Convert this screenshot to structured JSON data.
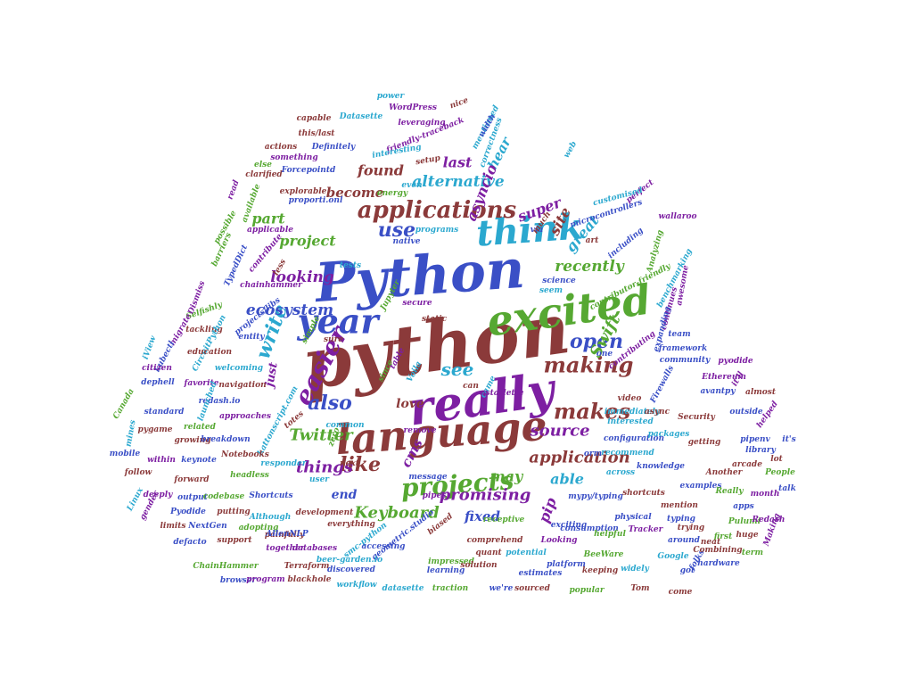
{
  "palette": [
    "#3a4fc6",
    "#8b3a3a",
    "#7d1fa2",
    "#56a832",
    "#2ba8cf"
  ],
  "words": [
    {
      "text": "python",
      "color": 1,
      "weight": 10
    },
    {
      "text": "Python",
      "color": 0,
      "weight": 9
    },
    {
      "text": "really",
      "color": 2,
      "weight": 8
    },
    {
      "text": "excited",
      "color": 3,
      "weight": 7
    },
    {
      "text": "language",
      "color": 1,
      "weight": 7
    },
    {
      "text": "think",
      "color": 4,
      "weight": 6
    },
    {
      "text": "year",
      "color": 0,
      "weight": 6
    },
    {
      "text": "applications",
      "color": 1,
      "weight": 5
    },
    {
      "text": "easier",
      "color": 2,
      "weight": 5
    },
    {
      "text": "projects",
      "color": 3,
      "weight": 5
    },
    {
      "text": "making",
      "color": 1,
      "weight": 5
    },
    {
      "text": "makes",
      "color": 1,
      "weight": 5
    },
    {
      "text": "also",
      "color": 0,
      "weight": 5
    },
    {
      "text": "like",
      "color": 1,
      "weight": 5
    },
    {
      "text": "use",
      "color": 0,
      "weight": 5
    },
    {
      "text": "open",
      "color": 0,
      "weight": 5
    },
    {
      "text": "see",
      "color": 4,
      "weight": 5
    },
    {
      "text": "write",
      "color": 4,
      "weight": 4
    },
    {
      "text": "Swift",
      "color": 3,
      "weight": 4
    },
    {
      "text": "application",
      "color": 1,
      "weight": 4
    },
    {
      "text": "source",
      "color": 2,
      "weight": 4
    },
    {
      "text": "promising",
      "color": 2,
      "weight": 4
    },
    {
      "text": "Keyboard",
      "color": 3,
      "weight": 4
    },
    {
      "text": "Twitter",
      "color": 3,
      "weight": 4
    },
    {
      "text": "things",
      "color": 2,
      "weight": 4
    },
    {
      "text": "ecosystem",
      "color": 0,
      "weight": 4
    },
    {
      "text": "alternative",
      "color": 4,
      "weight": 4
    },
    {
      "text": "looking",
      "color": 2,
      "weight": 4
    },
    {
      "text": "recently",
      "color": 3,
      "weight": 4
    },
    {
      "text": "great",
      "color": 4,
      "weight": 4
    },
    {
      "text": "super",
      "color": 2,
      "weight": 4
    },
    {
      "text": "found",
      "color": 1,
      "weight": 4
    },
    {
      "text": "last",
      "color": 2,
      "weight": 4
    },
    {
      "text": "hear",
      "color": 4,
      "weight": 4
    },
    {
      "text": "project",
      "color": 3,
      "weight": 4
    },
    {
      "text": "become",
      "color": 1,
      "weight": 4
    },
    {
      "text": "asyncio",
      "color": 2,
      "weight": 4
    },
    {
      "text": "part",
      "color": 3,
      "weight": 4
    },
    {
      "text": "site",
      "color": 1,
      "weight": 4
    },
    {
      "text": "able",
      "color": 4,
      "weight": 4
    },
    {
      "text": "pip",
      "color": 2,
      "weight": 4
    },
    {
      "text": "fixed",
      "color": 0,
      "weight": 4
    },
    {
      "text": "may",
      "color": 3,
      "weight": 4
    },
    {
      "text": "cms",
      "color": 2,
      "weight": 4
    },
    {
      "text": "love",
      "color": 1,
      "weight": 3
    },
    {
      "text": "end",
      "color": 0,
      "weight": 3
    },
    {
      "text": "just",
      "color": 2,
      "weight": 3
    },
    {
      "text": "power",
      "color": 4,
      "weight": 1
    },
    {
      "text": "nice",
      "color": 1,
      "weight": 1
    },
    {
      "text": "WordPress",
      "color": 2,
      "weight": 1
    },
    {
      "text": "capable",
      "color": 1,
      "weight": 1
    },
    {
      "text": "Datasette",
      "color": 4,
      "weight": 1
    },
    {
      "text": "leveraging",
      "color": 2,
      "weight": 1
    },
    {
      "text": "mentioned",
      "color": 4,
      "weight": 1
    },
    {
      "text": "this/last",
      "color": 1,
      "weight": 1
    },
    {
      "text": "friendly-traceback",
      "color": 2,
      "weight": 1
    },
    {
      "text": "Definitely",
      "color": 0,
      "weight": 1
    },
    {
      "text": "interesting",
      "color": 4,
      "weight": 1
    },
    {
      "text": "actions",
      "color": 1,
      "weight": 1
    },
    {
      "text": "something",
      "color": 2,
      "weight": 1
    },
    {
      "text": "else",
      "color": 3,
      "weight": 1
    },
    {
      "text": "setup",
      "color": 1,
      "weight": 1
    },
    {
      "text": "clarified",
      "color": 1,
      "weight": 1
    },
    {
      "text": "Forcepointd",
      "color": 0,
      "weight": 1
    },
    {
      "text": "explorable",
      "color": 1,
      "weight": 1
    },
    {
      "text": "energy",
      "color": 3,
      "weight": 1
    },
    {
      "text": "even",
      "color": 4,
      "weight": 1
    },
    {
      "text": "read",
      "color": 2,
      "weight": 1
    },
    {
      "text": "available",
      "color": 3,
      "weight": 1
    },
    {
      "text": "proporti.onl",
      "color": 0,
      "weight": 1
    },
    {
      "text": "possible",
      "color": 3,
      "weight": 1
    },
    {
      "text": "applicable",
      "color": 2,
      "weight": 1
    },
    {
      "text": "programs",
      "color": 4,
      "weight": 1
    },
    {
      "text": "native",
      "color": 0,
      "weight": 1
    },
    {
      "text": "via",
      "color": 0,
      "weight": 1
    },
    {
      "text": "much",
      "color": 1,
      "weight": 1
    },
    {
      "text": "art",
      "color": 1,
      "weight": 1
    },
    {
      "text": "perfect",
      "color": 2,
      "weight": 1
    },
    {
      "text": "customised",
      "color": 4,
      "weight": 1
    },
    {
      "text": "microcontrollers",
      "color": 0,
      "weight": 1
    },
    {
      "text": "wallaroo",
      "color": 2,
      "weight": 1
    },
    {
      "text": "including",
      "color": 0,
      "weight": 1
    },
    {
      "text": "benchmarking",
      "color": 4,
      "weight": 1
    },
    {
      "text": "Analyzing",
      "color": 3,
      "weight": 1
    },
    {
      "text": "awesome",
      "color": 2,
      "weight": 1
    },
    {
      "text": "barriers",
      "color": 3,
      "weight": 1
    },
    {
      "text": "TypedDict",
      "color": 0,
      "weight": 1
    },
    {
      "text": "contribute",
      "color": 2,
      "weight": 1
    },
    {
      "text": "tests",
      "color": 4,
      "weight": 1
    },
    {
      "text": "less",
      "color": 1,
      "weight": 1
    },
    {
      "text": "chainhammer",
      "color": 2,
      "weight": 1
    },
    {
      "text": "science",
      "color": 0,
      "weight": 1
    },
    {
      "text": "seem",
      "color": 4,
      "weight": 1
    },
    {
      "text": "secure",
      "color": 2,
      "weight": 1
    },
    {
      "text": "contributor-friendly",
      "color": 3,
      "weight": 1
    },
    {
      "text": "continues",
      "color": 2,
      "weight": 1
    },
    {
      "text": "expanding",
      "color": 0,
      "weight": 1
    },
    {
      "text": "Dismiss",
      "color": 2,
      "weight": 1
    },
    {
      "text": "Selfishly",
      "color": 3,
      "weight": 1
    },
    {
      "text": "projects/libs",
      "color": 0,
      "weight": 1
    },
    {
      "text": "Jupyter",
      "color": 3,
      "weight": 1
    },
    {
      "text": "static",
      "color": 1,
      "weight": 1
    },
    {
      "text": "team",
      "color": 0,
      "weight": 1
    },
    {
      "text": "framework",
      "color": 0,
      "weight": 1
    },
    {
      "text": "migrate",
      "color": 2,
      "weight": 1
    },
    {
      "text": "tackling",
      "color": 1,
      "weight": 1
    },
    {
      "text": "entity",
      "color": 0,
      "weight": 1
    },
    {
      "text": "sure",
      "color": 1,
      "weight": 1
    },
    {
      "text": "simple",
      "color": 3,
      "weight": 1
    },
    {
      "text": "CircuitPython",
      "color": 4,
      "weight": 1
    },
    {
      "text": "iView",
      "color": 4,
      "weight": 1
    },
    {
      "text": "kubectl",
      "color": 0,
      "weight": 1
    },
    {
      "text": "education",
      "color": 1,
      "weight": 1
    },
    {
      "text": "citizen",
      "color": 2,
      "weight": 1
    },
    {
      "text": "welcoming",
      "color": 4,
      "weight": 1
    },
    {
      "text": "table",
      "color": 2,
      "weight": 1
    },
    {
      "text": "since",
      "color": 3,
      "weight": 1
    },
    {
      "text": "Voila",
      "color": 4,
      "weight": 1
    },
    {
      "text": "one",
      "color": 0,
      "weight": 1
    },
    {
      "text": "contributing",
      "color": 2,
      "weight": 1
    },
    {
      "text": "community",
      "color": 0,
      "weight": 1
    },
    {
      "text": "pyodide",
      "color": 2,
      "weight": 1
    },
    {
      "text": "it'll",
      "color": 2,
      "weight": 1
    },
    {
      "text": "dephell",
      "color": 0,
      "weight": 1
    },
    {
      "text": "favorite",
      "color": 2,
      "weight": 1
    },
    {
      "text": "navigation",
      "color": 1,
      "weight": 1
    },
    {
      "text": "redash.io",
      "color": 0,
      "weight": 1
    },
    {
      "text": "launched",
      "color": 4,
      "weight": 1
    },
    {
      "text": "can",
      "color": 1,
      "weight": 1
    },
    {
      "text": "came",
      "color": 4,
      "weight": 1
    },
    {
      "text": "starlette",
      "color": 2,
      "weight": 1
    },
    {
      "text": "Firewalls",
      "color": 0,
      "weight": 1
    },
    {
      "text": "video",
      "color": 1,
      "weight": 1
    },
    {
      "text": "Ethereum",
      "color": 2,
      "weight": 1
    },
    {
      "text": "avantpy",
      "color": 0,
      "weight": 1
    },
    {
      "text": "almost",
      "color": 1,
      "weight": 1
    },
    {
      "text": "Canada",
      "color": 3,
      "weight": 1
    },
    {
      "text": "standard",
      "color": 0,
      "weight": 1
    },
    {
      "text": "approaches",
      "color": 2,
      "weight": 1
    },
    {
      "text": "kattonscript.com",
      "color": 4,
      "weight": 1
    },
    {
      "text": "totes",
      "color": 1,
      "weight": 1
    },
    {
      "text": "remove",
      "color": 2,
      "weight": 1
    },
    {
      "text": "immediately",
      "color": 4,
      "weight": 1
    },
    {
      "text": "async",
      "color": 1,
      "weight": 1
    },
    {
      "text": "Security",
      "color": 1,
      "weight": 1
    },
    {
      "text": "outside",
      "color": 0,
      "weight": 1
    },
    {
      "text": "pygame",
      "color": 1,
      "weight": 1
    },
    {
      "text": "related",
      "color": 3,
      "weight": 1
    },
    {
      "text": "common",
      "color": 4,
      "weight": 1
    },
    {
      "text": "zero",
      "color": 3,
      "weight": 1
    },
    {
      "text": "interested",
      "color": 4,
      "weight": 1
    },
    {
      "text": "helped",
      "color": 2,
      "weight": 1
    },
    {
      "text": "mines",
      "color": 4,
      "weight": 1
    },
    {
      "text": "growing",
      "color": 1,
      "weight": 1
    },
    {
      "text": "breakdown",
      "color": 0,
      "weight": 1
    },
    {
      "text": "configuration",
      "color": 0,
      "weight": 1
    },
    {
      "text": "packages",
      "color": 4,
      "weight": 1
    },
    {
      "text": "getting",
      "color": 1,
      "weight": 1
    },
    {
      "text": "pipenv",
      "color": 0,
      "weight": 1
    },
    {
      "text": "it's",
      "color": 0,
      "weight": 1
    },
    {
      "text": "mobile",
      "color": 0,
      "weight": 1
    },
    {
      "text": "within",
      "color": 2,
      "weight": 1
    },
    {
      "text": "keynote",
      "color": 0,
      "weight": 1
    },
    {
      "text": "Notebooks",
      "color": 1,
      "weight": 1
    },
    {
      "text": "responder",
      "color": 4,
      "weight": 1
    },
    {
      "text": "next",
      "color": 1,
      "weight": 1
    },
    {
      "text": "orm",
      "color": 0,
      "weight": 1
    },
    {
      "text": "recommend",
      "color": 4,
      "weight": 1
    },
    {
      "text": "arcade",
      "color": 1,
      "weight": 1
    },
    {
      "text": "follow",
      "color": 1,
      "weight": 1
    },
    {
      "text": "forward",
      "color": 1,
      "weight": 1
    },
    {
      "text": "headless",
      "color": 3,
      "weight": 1
    },
    {
      "text": "user",
      "color": 4,
      "weight": 1
    },
    {
      "text": "message",
      "color": 0,
      "weight": 1
    },
    {
      "text": "across",
      "color": 4,
      "weight": 1
    },
    {
      "text": "knowledge",
      "color": 0,
      "weight": 1
    },
    {
      "text": "Another",
      "color": 1,
      "weight": 1
    },
    {
      "text": "People",
      "color": 3,
      "weight": 1
    },
    {
      "text": "talk",
      "color": 0,
      "weight": 1
    },
    {
      "text": "deeply",
      "color": 2,
      "weight": 1
    },
    {
      "text": "output",
      "color": 0,
      "weight": 1
    },
    {
      "text": "codebase",
      "color": 3,
      "weight": 1
    },
    {
      "text": "Shortcuts",
      "color": 0,
      "weight": 1
    },
    {
      "text": "pipes",
      "color": 2,
      "weight": 1
    },
    {
      "text": "mypy/typing",
      "color": 0,
      "weight": 1
    },
    {
      "text": "shortcuts",
      "color": 1,
      "weight": 1
    },
    {
      "text": "examples",
      "color": 0,
      "weight": 1
    },
    {
      "text": "Really",
      "color": 3,
      "weight": 1
    },
    {
      "text": "month",
      "color": 2,
      "weight": 1
    },
    {
      "text": "Linux",
      "color": 4,
      "weight": 1
    },
    {
      "text": "gender",
      "color": 2,
      "weight": 1
    },
    {
      "text": "Pyodide",
      "color": 0,
      "weight": 1
    },
    {
      "text": "putting",
      "color": 1,
      "weight": 1
    },
    {
      "text": "Although",
      "color": 4,
      "weight": 1
    },
    {
      "text": "development",
      "color": 1,
      "weight": 1
    },
    {
      "text": "receptive",
      "color": 3,
      "weight": 1
    },
    {
      "text": "physical",
      "color": 0,
      "weight": 1
    },
    {
      "text": "mention",
      "color": 1,
      "weight": 1
    },
    {
      "text": "apps",
      "color": 0,
      "weight": 1
    },
    {
      "text": "limits",
      "color": 1,
      "weight": 1
    },
    {
      "text": "NextGen",
      "color": 0,
      "weight": 1
    },
    {
      "text": "adopting",
      "color": 3,
      "weight": 1
    },
    {
      "text": "painfully",
      "color": 1,
      "weight": 1
    },
    {
      "text": "geometric.studio",
      "color": 0,
      "weight": 1
    },
    {
      "text": "consumption",
      "color": 0,
      "weight": 1
    },
    {
      "text": "typing",
      "color": 0,
      "weight": 1
    },
    {
      "text": "Pulumi",
      "color": 3,
      "weight": 1
    },
    {
      "text": "Redash",
      "color": 2,
      "weight": 1
    },
    {
      "text": "defacto",
      "color": 0,
      "weight": 1
    },
    {
      "text": "support",
      "color": 1,
      "weight": 1
    },
    {
      "text": "together",
      "color": 2,
      "weight": 1
    },
    {
      "text": "databases",
      "color": 2,
      "weight": 1
    },
    {
      "text": "everything",
      "color": 1,
      "weight": 1
    },
    {
      "text": "smc-python",
      "color": 4,
      "weight": 1
    },
    {
      "text": "biased",
      "color": 1,
      "weight": 1
    },
    {
      "text": "accessing",
      "color": 0,
      "weight": 1
    },
    {
      "text": "exciting",
      "color": 0,
      "weight": 1
    },
    {
      "text": "helpful",
      "color": 3,
      "weight": 1
    },
    {
      "text": "Tracker",
      "color": 2,
      "weight": 1
    },
    {
      "text": "trying",
      "color": 1,
      "weight": 1
    },
    {
      "text": "first",
      "color": 3,
      "weight": 1
    },
    {
      "text": "huge",
      "color": 1,
      "weight": 1
    },
    {
      "text": "Making",
      "color": 2,
      "weight": 1
    },
    {
      "text": "ChainHammer",
      "color": 3,
      "weight": 1
    },
    {
      "text": "AllenNLP",
      "color": 0,
      "weight": 1
    },
    {
      "text": "Terraform",
      "color": 1,
      "weight": 1
    },
    {
      "text": "beer-garden.io",
      "color": 4,
      "weight": 1
    },
    {
      "text": "comprehend",
      "color": 1,
      "weight": 1
    },
    {
      "text": "Looking",
      "color": 2,
      "weight": 1
    },
    {
      "text": "around",
      "color": 0,
      "weight": 1
    },
    {
      "text": "neat",
      "color": 1,
      "weight": 1
    },
    {
      "text": "term",
      "color": 3,
      "weight": 1
    },
    {
      "text": "browser",
      "color": 0,
      "weight": 1
    },
    {
      "text": "program",
      "color": 2,
      "weight": 1
    },
    {
      "text": "blackhole",
      "color": 1,
      "weight": 1
    },
    {
      "text": "discovered",
      "color": 0,
      "weight": 1
    },
    {
      "text": "impressed",
      "color": 3,
      "weight": 1
    },
    {
      "text": "potential",
      "color": 4,
      "weight": 1
    },
    {
      "text": "platform",
      "color": 0,
      "weight": 1
    },
    {
      "text": "BeeWare",
      "color": 3,
      "weight": 1
    },
    {
      "text": "Google",
      "color": 4,
      "weight": 1
    },
    {
      "text": "folks",
      "color": 0,
      "weight": 1
    },
    {
      "text": "Combining",
      "color": 1,
      "weight": 1
    },
    {
      "text": "solution",
      "color": 1,
      "weight": 1
    },
    {
      "text": "keeping",
      "color": 1,
      "weight": 1
    },
    {
      "text": "widely",
      "color": 4,
      "weight": 1
    },
    {
      "text": "got",
      "color": 0,
      "weight": 1
    },
    {
      "text": "hardware",
      "color": 0,
      "weight": 1
    },
    {
      "text": "workflow",
      "color": 4,
      "weight": 1
    },
    {
      "text": "datasette",
      "color": 4,
      "weight": 1
    },
    {
      "text": "learning",
      "color": 0,
      "weight": 1
    },
    {
      "text": "estimates",
      "color": 0,
      "weight": 1
    },
    {
      "text": "traction",
      "color": 3,
      "weight": 1
    },
    {
      "text": "we're",
      "color": 0,
      "weight": 1
    },
    {
      "text": "sourced",
      "color": 1,
      "weight": 1
    },
    {
      "text": "popular",
      "color": 3,
      "weight": 1
    },
    {
      "text": "Tom",
      "color": 1,
      "weight": 1
    },
    {
      "text": "come",
      "color": 1,
      "weight": 1
    },
    {
      "text": "quant",
      "color": 1,
      "weight": 1
    },
    {
      "text": "web",
      "color": 4,
      "weight": 1
    },
    {
      "text": "correctness",
      "color": 4,
      "weight": 1
    },
    {
      "text": "width",
      "color": 0,
      "weight": 1
    },
    {
      "text": "lot",
      "color": 1,
      "weight": 1
    },
    {
      "text": "library",
      "color": 0,
      "weight": 1
    }
  ]
}
